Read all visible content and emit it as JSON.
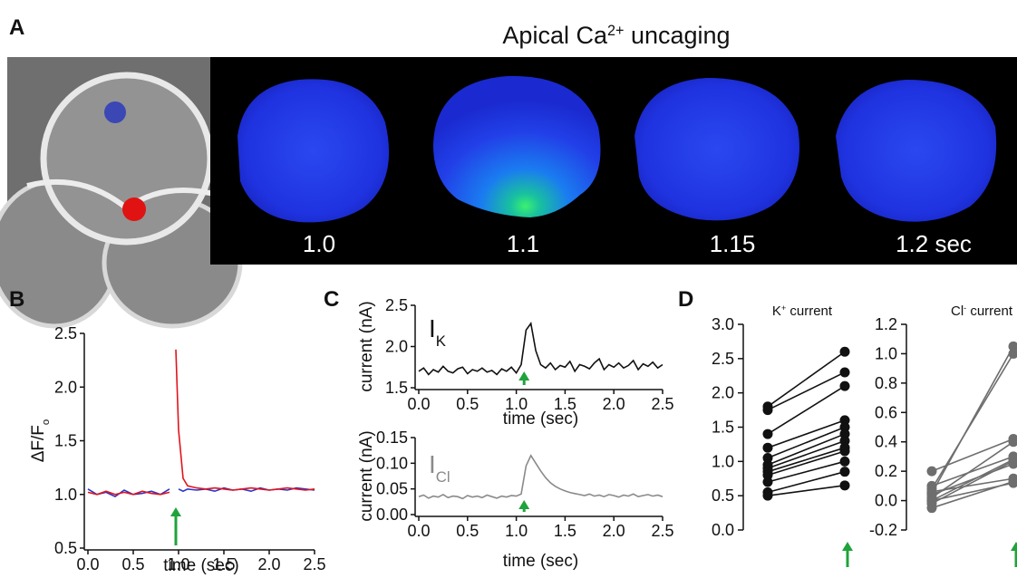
{
  "figure": {
    "panel": "A",
    "title": [
      "Apical Ca",
      "2+",
      " uncaging"
    ],
    "frames": [
      "1.0",
      "1.1",
      "1.15",
      "1.2 sec"
    ]
  },
  "chart_data": [
    {
      "type": "line",
      "panel": "B",
      "xlabel": "time (sec)",
      "ylabel": [
        "ΔF/F",
        "o"
      ],
      "xlim": [
        0,
        2.5
      ],
      "ylim": [
        0.5,
        2.5
      ],
      "xticks": [
        {
          "value": 0,
          "label": "0.0"
        },
        0.5,
        {
          "value": 1,
          "label": "1.0"
        },
        1.5,
        {
          "value": 2,
          "label": "2.0"
        },
        2.5
      ],
      "yticks": [
        0.5,
        {
          "value": 1,
          "label": "1.0"
        },
        1.5,
        {
          "value": 2,
          "label": "2.0"
        },
        2.5
      ],
      "stimulus_x": 0.97,
      "x": [
        0,
        0.1,
        0.2,
        0.3,
        0.4,
        0.5,
        0.6,
        0.7,
        0.8,
        0.9,
        0.95,
        0.97,
        1.0,
        1.05,
        1.1,
        1.2,
        1.3,
        1.4,
        1.5,
        1.6,
        1.7,
        1.8,
        1.9,
        2.0,
        2.1,
        2.2,
        2.3,
        2.4,
        2.5
      ],
      "series": [
        {
          "color": "#2b35c9",
          "values": [
            1.05,
            1.0,
            1.02,
            0.98,
            1.04,
            1.0,
            1.01,
            1.03,
            1.0,
            1.05,
            null,
            null,
            1.05,
            1.03,
            1.05,
            1.04,
            1.05,
            1.03,
            1.06,
            1.04,
            1.05,
            1.03,
            1.06,
            1.04,
            1.05,
            1.04,
            1.06,
            1.05,
            1.04
          ]
        },
        {
          "color": "#e0141c",
          "values": [
            1.02,
            1.0,
            1.03,
            1.0,
            1.02,
            1.0,
            1.03,
            1.01,
            1.0,
            1.02,
            null,
            2.35,
            1.6,
            1.15,
            1.08,
            1.06,
            1.05,
            1.06,
            1.05,
            1.04,
            1.05,
            1.06,
            1.05,
            1.04,
            1.05,
            1.06,
            1.05,
            1.04,
            1.05
          ]
        }
      ]
    },
    {
      "type": "line",
      "panel": "C",
      "xlabel": "time (sec)",
      "ylabel": [
        "current (nA)"
      ],
      "annotation": [
        "I",
        "K"
      ],
      "xlim": [
        0,
        2.5
      ],
      "ylim": [
        1.5,
        2.5
      ],
      "xticks": [
        {
          "value": 0,
          "label": "0.0"
        },
        0.5,
        {
          "value": 1,
          "label": "1.0"
        },
        1.5,
        {
          "value": 2,
          "label": "2.0"
        },
        2.5
      ],
      "yticks": [
        1.5,
        {
          "value": 2,
          "label": "2.0"
        },
        2.5
      ],
      "stimulus_x": 1.08,
      "x": [
        0,
        0.05,
        0.1,
        0.15,
        0.2,
        0.25,
        0.3,
        0.35,
        0.4,
        0.45,
        0.5,
        0.55,
        0.6,
        0.65,
        0.7,
        0.75,
        0.8,
        0.85,
        0.9,
        0.95,
        1.0,
        1.05,
        1.1,
        1.15,
        1.2,
        1.25,
        1.3,
        1.35,
        1.4,
        1.45,
        1.5,
        1.55,
        1.6,
        1.65,
        1.7,
        1.75,
        1.8,
        1.85,
        1.9,
        1.95,
        2.0,
        2.05,
        2.1,
        2.15,
        2.2,
        2.25,
        2.3,
        2.35,
        2.4,
        2.45,
        2.5
      ],
      "series": [
        {
          "color": "#111111",
          "values": [
            1.7,
            1.74,
            1.66,
            1.72,
            1.69,
            1.76,
            1.7,
            1.68,
            1.73,
            1.75,
            1.67,
            1.72,
            1.7,
            1.74,
            1.69,
            1.71,
            1.66,
            1.73,
            1.7,
            1.75,
            1.68,
            1.78,
            2.2,
            2.28,
            1.95,
            1.78,
            1.74,
            1.8,
            1.72,
            1.77,
            1.75,
            1.82,
            1.7,
            1.78,
            1.76,
            1.73,
            1.8,
            1.85,
            1.72,
            1.78,
            1.75,
            1.8,
            1.74,
            1.77,
            1.83,
            1.72,
            1.79,
            1.76,
            1.81,
            1.74,
            1.78
          ]
        }
      ]
    },
    {
      "type": "line",
      "xlabel": "time (sec)",
      "ylabel": [
        "current (nA)"
      ],
      "annotation": [
        "I",
        "Cl"
      ],
      "xlim": [
        0,
        2.5
      ],
      "ylim": [
        0,
        0.15
      ],
      "xticks": [
        {
          "value": 0,
          "label": "0.0"
        },
        0.5,
        {
          "value": 1,
          "label": "1.0"
        },
        1.5,
        {
          "value": 2,
          "label": "2.0"
        },
        2.5
      ],
      "yticks": [
        {
          "value": 0,
          "label": "0.00"
        },
        0.05,
        {
          "value": 0.1,
          "label": "0.10"
        },
        0.15
      ],
      "stimulus_x": 1.08,
      "x": [
        0,
        0.05,
        0.1,
        0.15,
        0.2,
        0.25,
        0.3,
        0.35,
        0.4,
        0.45,
        0.5,
        0.55,
        0.6,
        0.65,
        0.7,
        0.75,
        0.8,
        0.85,
        0.9,
        0.95,
        1.0,
        1.05,
        1.1,
        1.15,
        1.2,
        1.25,
        1.3,
        1.35,
        1.4,
        1.45,
        1.5,
        1.55,
        1.6,
        1.65,
        1.7,
        1.75,
        1.8,
        1.85,
        1.9,
        1.95,
        2.0,
        2.05,
        2.1,
        2.15,
        2.2,
        2.25,
        2.3,
        2.35,
        2.4,
        2.45,
        2.5
      ],
      "series": [
        {
          "color": "#8a8a8a",
          "values": [
            0.035,
            0.038,
            0.032,
            0.036,
            0.034,
            0.039,
            0.033,
            0.036,
            0.035,
            0.031,
            0.037,
            0.034,
            0.036,
            0.033,
            0.038,
            0.035,
            0.032,
            0.036,
            0.034,
            0.037,
            0.036,
            0.04,
            0.095,
            0.115,
            0.1,
            0.085,
            0.072,
            0.062,
            0.055,
            0.05,
            0.046,
            0.043,
            0.041,
            0.039,
            0.037,
            0.04,
            0.036,
            0.038,
            0.035,
            0.039,
            0.037,
            0.034,
            0.038,
            0.036,
            0.04,
            0.035,
            0.037,
            0.039,
            0.036,
            0.038,
            0.035
          ]
        }
      ]
    },
    {
      "type": "paired",
      "panel": "D",
      "title": [
        "K",
        "+",
        " current"
      ],
      "color": "#111111",
      "categories": [
        null,
        null
      ],
      "ylim": [
        0,
        3
      ],
      "yticks": [
        {
          "value": 0,
          "label": "0.0"
        },
        0.5,
        {
          "value": 1,
          "label": "1.0"
        },
        1.5,
        {
          "value": 2,
          "label": "2.0"
        },
        2.5,
        {
          "value": 3,
          "label": "3.0"
        }
      ],
      "series": [
        {
          "values": [
            1.8,
            2.6
          ]
        },
        {
          "values": [
            1.75,
            2.3
          ]
        },
        {
          "values": [
            1.4,
            2.1
          ]
        },
        {
          "values": [
            1.2,
            1.6
          ]
        },
        {
          "values": [
            1.05,
            1.5
          ]
        },
        {
          "values": [
            0.95,
            1.4
          ]
        },
        {
          "values": [
            0.9,
            1.3
          ]
        },
        {
          "values": [
            0.85,
            1.2
          ]
        },
        {
          "values": [
            0.8,
            1.15
          ]
        },
        {
          "values": [
            0.7,
            1.0
          ]
        },
        {
          "values": [
            0.55,
            0.85
          ]
        },
        {
          "values": [
            0.5,
            0.65
          ]
        }
      ]
    },
    {
      "type": "paired",
      "title": [
        "Cl",
        "-",
        " current"
      ],
      "color": "#6e6e6e",
      "categories": [
        null,
        null
      ],
      "ylim": [
        -0.2,
        1.2
      ],
      "yticks": [
        -0.2,
        {
          "value": 0,
          "label": "0.0"
        },
        0.2,
        0.4,
        0.6,
        0.8,
        {
          "value": 1,
          "label": "1.0"
        },
        1.2
      ],
      "series": [
        {
          "values": [
            0.05,
            1.05
          ]
        },
        {
          "values": [
            0.08,
            1.0
          ]
        },
        {
          "values": [
            0.2,
            0.42
          ]
        },
        {
          "values": [
            0.02,
            0.4
          ]
        },
        {
          "values": [
            0.1,
            0.3
          ]
        },
        {
          "values": [
            0.0,
            0.28
          ]
        },
        {
          "values": [
            -0.02,
            0.27
          ]
        },
        {
          "values": [
            0.04,
            0.25
          ]
        },
        {
          "values": [
            0.06,
            0.15
          ]
        },
        {
          "values": [
            -0.05,
            0.13
          ]
        },
        {
          "values": [
            0.0,
            0.12
          ]
        }
      ]
    }
  ]
}
